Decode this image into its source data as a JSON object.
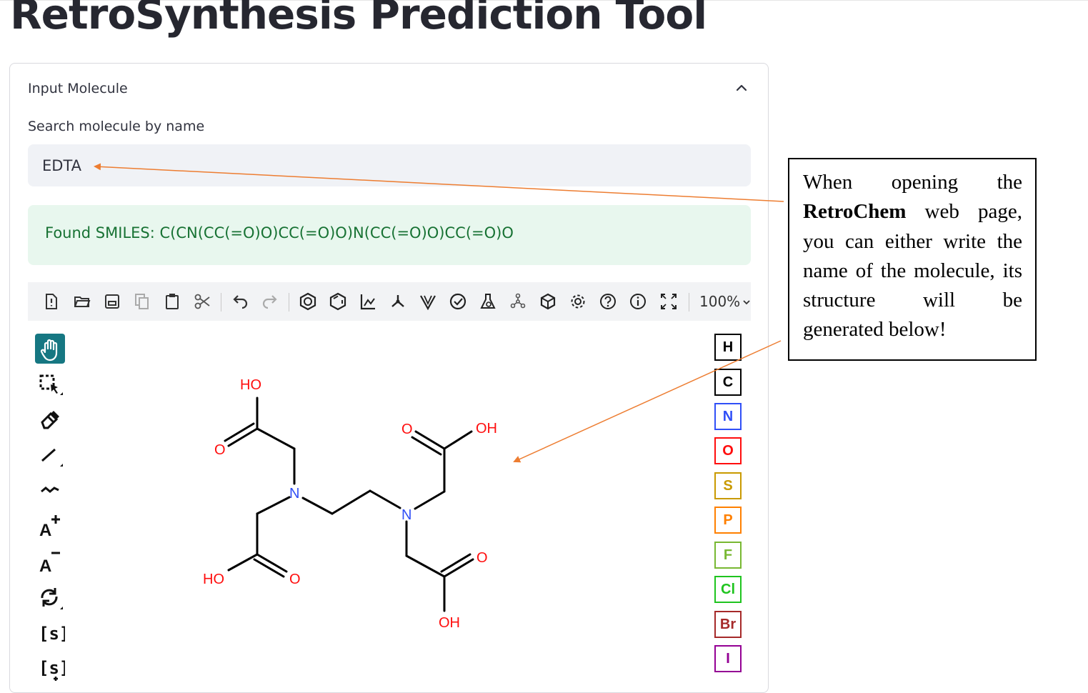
{
  "page": {
    "title": "RetroSynthesis Prediction Tool"
  },
  "input_panel": {
    "title": "Input Molecule",
    "collapse_icon": "chevron-up-icon",
    "search_label": "Search molecule by name",
    "search_value": "EDTA",
    "found_smiles": "Found SMILES: C(CN(CC(=O)O)CC(=O)O)N(CC(=O)O)CC(=O)O"
  },
  "editor": {
    "toolbar_icons": [
      "clear-canvas-icon",
      "open-file-icon",
      "save-icon",
      "copy-icon",
      "paste-icon",
      "cut-icon",
      "undo-icon",
      "redo-icon",
      "aromatize-icon",
      "dearomatize-icon",
      "layout-icon",
      "clean-up-icon",
      "calculate-cip-icon",
      "check-structure-icon",
      "calculated-values-icon",
      "recognize-molecule-icon",
      "3d-viewer-icon",
      "settings-icon",
      "help-icon",
      "about-icon",
      "fullscreen-icon"
    ],
    "zoom": "100%",
    "left_tools": [
      "hand-tool-icon",
      "select-tool-icon",
      "eraser-icon",
      "bond-tool-icon",
      "chain-tool-icon",
      "charge-plus-icon",
      "charge-minus-icon",
      "transform-icon",
      "sgroup-icon",
      "sgroup-attach-icon"
    ],
    "charge_plus_label": "A",
    "charge_minus_label": "A",
    "sgroup_label": "[s]",
    "sgroup_attach_label": "[s]",
    "elements": [
      {
        "symbol": "H",
        "color": "#000000"
      },
      {
        "symbol": "C",
        "color": "#000000"
      },
      {
        "symbol": "N",
        "color": "#304ff7"
      },
      {
        "symbol": "O",
        "color": "#ff0d0d"
      },
      {
        "symbol": "S",
        "color": "#c99a00"
      },
      {
        "symbol": "P",
        "color": "#ff8000"
      },
      {
        "symbol": "F",
        "color": "#78b832"
      },
      {
        "symbol": "Cl",
        "color": "#1fc41f"
      },
      {
        "symbol": "Br",
        "color": "#a62929"
      },
      {
        "symbol": "I",
        "color": "#940094"
      }
    ],
    "molecule_labels": {
      "ho_top": "HO",
      "o_top": "O",
      "n_left": "N",
      "ho_bottom": "HO",
      "o_bottom_left": "O",
      "o_right_top": "O",
      "oh_right_top": "OH",
      "n_right": "N",
      "o_right_bottom": "O",
      "oh_bottom": "OH"
    },
    "atom_colors": {
      "O": "#ff0d0d",
      "N": "#304ff7",
      "bond": "#000000"
    }
  },
  "annotation": {
    "pre": "When opening the ",
    "bold": "RetroChem",
    "post": " web page, you can either write the name of the molecule, its structure will be generated below!",
    "arrow_color": "#ed7d31"
  }
}
